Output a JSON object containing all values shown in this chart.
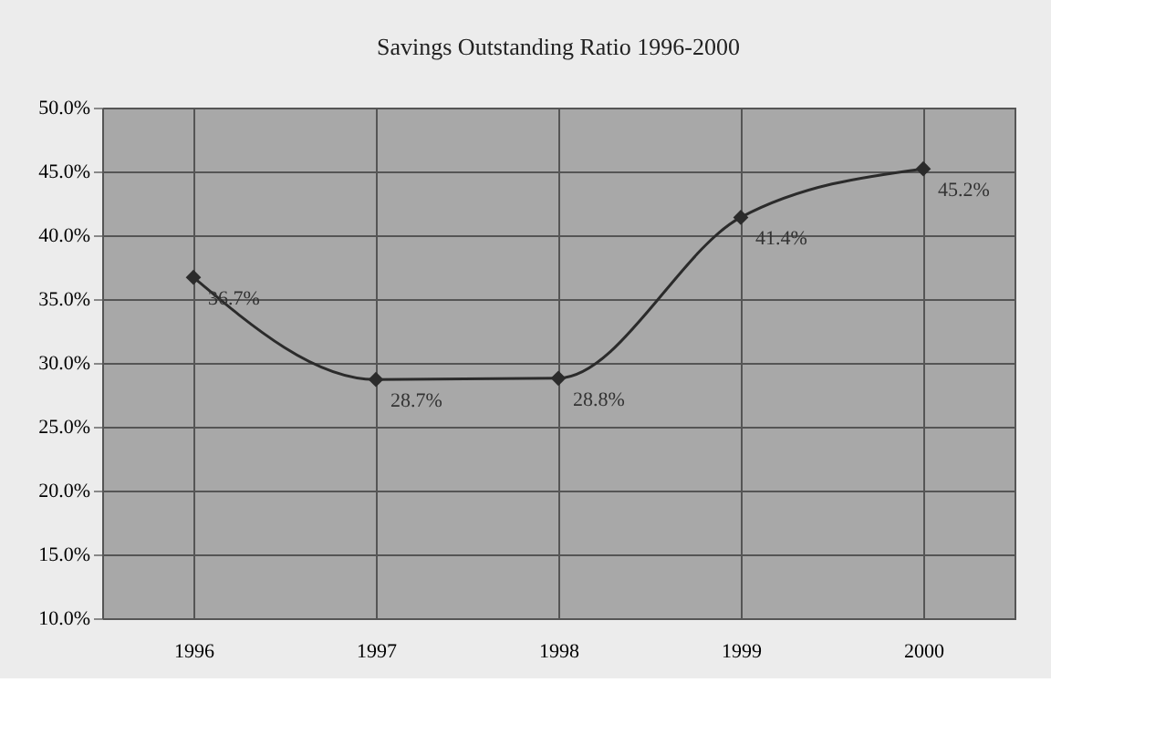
{
  "chart_data": {
    "type": "line",
    "title": "Savings Outstanding Ratio 1996-2000",
    "categories": [
      "1996",
      "1997",
      "1998",
      "1999",
      "2000"
    ],
    "series": [
      {
        "color": "#2b2b2b",
        "values": [
          36.7,
          28.7,
          28.8,
          41.4,
          45.2
        ],
        "value_labels": [
          "36.7%",
          "28.7%",
          "28.8%",
          "41.4%",
          "45.2%"
        ]
      }
    ],
    "ylim": [
      10,
      50
    ],
    "yticks": [
      {
        "value": 10,
        "label": "10.0%"
      },
      {
        "value": 15,
        "label": "15.0%"
      },
      {
        "value": 20,
        "label": "20.0%"
      },
      {
        "value": 25,
        "label": "25.0%"
      },
      {
        "value": 30,
        "label": "30.0%"
      },
      {
        "value": 35,
        "label": "35.0%"
      },
      {
        "value": 40,
        "label": "40.0%"
      },
      {
        "value": 45,
        "label": "45.0%"
      },
      {
        "value": 50,
        "label": "50.0%"
      }
    ],
    "grid": true,
    "marker": "diamond",
    "line_style": "solid"
  }
}
